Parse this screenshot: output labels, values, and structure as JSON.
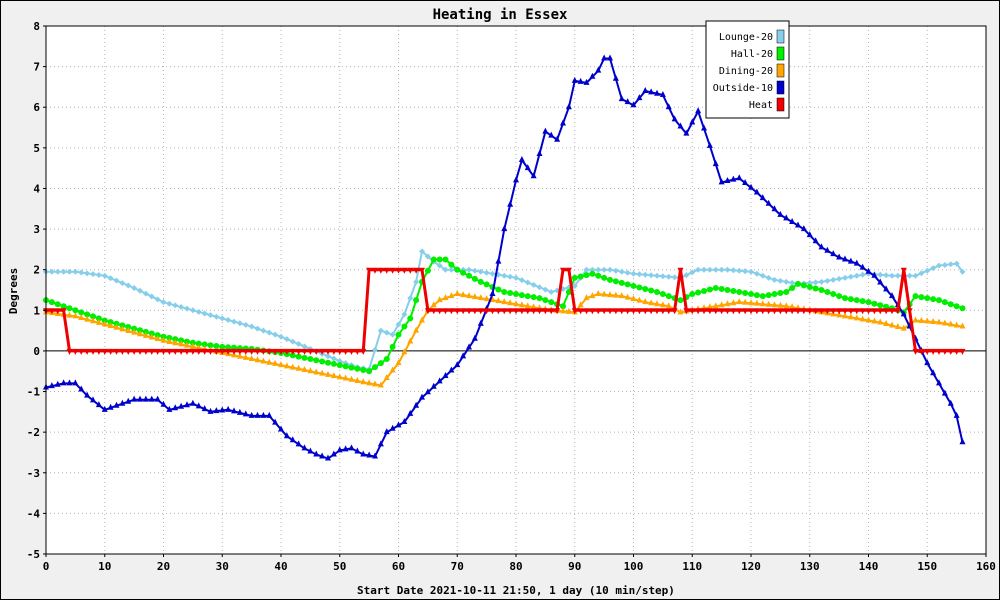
{
  "chart_data": {
    "type": "line",
    "title": "Heating in Essex",
    "xlabel": "Start Date 2021-10-11 21:50, 1 day (10 min/step)",
    "ylabel": "Degrees",
    "xlim": [
      0,
      160
    ],
    "ylim": [
      -5,
      8
    ],
    "xticks": [
      0,
      10,
      20,
      30,
      40,
      50,
      60,
      70,
      80,
      90,
      100,
      110,
      120,
      130,
      140,
      150,
      160
    ],
    "yticks": [
      -5,
      -4,
      -3,
      -2,
      -1,
      0,
      1,
      2,
      3,
      4,
      5,
      6,
      7,
      8
    ],
    "grid": true,
    "legend": "top-right",
    "series": [
      {
        "name": "Lounge-20",
        "color": "#87ceeb",
        "marker": "diamond",
        "points": [
          [
            0,
            1.95
          ],
          [
            5,
            1.95
          ],
          [
            10,
            1.85
          ],
          [
            15,
            1.55
          ],
          [
            20,
            1.2
          ],
          [
            25,
            1.0
          ],
          [
            30,
            0.8
          ],
          [
            35,
            0.6
          ],
          [
            40,
            0.35
          ],
          [
            45,
            0.05
          ],
          [
            50,
            -0.25
          ],
          [
            53,
            -0.4
          ],
          [
            55,
            -0.45
          ],
          [
            57,
            0.5
          ],
          [
            59,
            0.4
          ],
          [
            61,
            0.9
          ],
          [
            63,
            1.7
          ],
          [
            64,
            2.45
          ],
          [
            66,
            2.2
          ],
          [
            68,
            2.0
          ],
          [
            72,
            2.0
          ],
          [
            80,
            1.8
          ],
          [
            86,
            1.45
          ],
          [
            90,
            1.6
          ],
          [
            92,
            2.0
          ],
          [
            96,
            2.0
          ],
          [
            100,
            1.9
          ],
          [
            104,
            1.85
          ],
          [
            108,
            1.8
          ],
          [
            111,
            2.0
          ],
          [
            116,
            2.0
          ],
          [
            120,
            1.95
          ],
          [
            124,
            1.75
          ],
          [
            128,
            1.65
          ],
          [
            132,
            1.7
          ],
          [
            136,
            1.8
          ],
          [
            140,
            1.9
          ],
          [
            144,
            1.85
          ],
          [
            148,
            1.85
          ],
          [
            152,
            2.1
          ],
          [
            155,
            2.15
          ],
          [
            156,
            1.95
          ]
        ]
      },
      {
        "name": "Hall-20",
        "color": "#00ee00",
        "marker": "circle",
        "points": [
          [
            0,
            1.25
          ],
          [
            5,
            1.0
          ],
          [
            10,
            0.75
          ],
          [
            15,
            0.55
          ],
          [
            20,
            0.35
          ],
          [
            25,
            0.2
          ],
          [
            30,
            0.1
          ],
          [
            35,
            0.05
          ],
          [
            40,
            -0.05
          ],
          [
            45,
            -0.2
          ],
          [
            50,
            -0.35
          ],
          [
            55,
            -0.5
          ],
          [
            58,
            -0.2
          ],
          [
            60,
            0.4
          ],
          [
            62,
            0.8
          ],
          [
            64,
            1.7
          ],
          [
            66,
            2.25
          ],
          [
            68,
            2.25
          ],
          [
            70,
            2.0
          ],
          [
            74,
            1.7
          ],
          [
            78,
            1.45
          ],
          [
            84,
            1.3
          ],
          [
            88,
            1.1
          ],
          [
            90,
            1.8
          ],
          [
            93,
            1.9
          ],
          [
            96,
            1.75
          ],
          [
            100,
            1.6
          ],
          [
            104,
            1.45
          ],
          [
            108,
            1.25
          ],
          [
            110,
            1.4
          ],
          [
            114,
            1.55
          ],
          [
            118,
            1.45
          ],
          [
            122,
            1.35
          ],
          [
            126,
            1.45
          ],
          [
            128,
            1.65
          ],
          [
            132,
            1.5
          ],
          [
            136,
            1.3
          ],
          [
            140,
            1.2
          ],
          [
            144,
            1.05
          ],
          [
            146,
            0.95
          ],
          [
            148,
            1.35
          ],
          [
            152,
            1.25
          ],
          [
            156,
            1.05
          ]
        ]
      },
      {
        "name": "Dining-20",
        "color": "#ffa500",
        "marker": "triangle",
        "points": [
          [
            0,
            0.95
          ],
          [
            5,
            0.85
          ],
          [
            10,
            0.65
          ],
          [
            15,
            0.45
          ],
          [
            20,
            0.25
          ],
          [
            25,
            0.1
          ],
          [
            30,
            -0.05
          ],
          [
            35,
            -0.2
          ],
          [
            40,
            -0.35
          ],
          [
            45,
            -0.5
          ],
          [
            50,
            -0.65
          ],
          [
            55,
            -0.8
          ],
          [
            57,
            -0.85
          ],
          [
            60,
            -0.3
          ],
          [
            63,
            0.5
          ],
          [
            65,
            1.0
          ],
          [
            67,
            1.25
          ],
          [
            70,
            1.4
          ],
          [
            74,
            1.3
          ],
          [
            78,
            1.2
          ],
          [
            82,
            1.1
          ],
          [
            86,
            1.0
          ],
          [
            90,
            0.95
          ],
          [
            92,
            1.3
          ],
          [
            94,
            1.4
          ],
          [
            98,
            1.35
          ],
          [
            102,
            1.2
          ],
          [
            106,
            1.1
          ],
          [
            108,
            0.95
          ],
          [
            110,
            1.0
          ],
          [
            114,
            1.1
          ],
          [
            118,
            1.2
          ],
          [
            122,
            1.15
          ],
          [
            126,
            1.1
          ],
          [
            130,
            1.0
          ],
          [
            134,
            0.9
          ],
          [
            138,
            0.8
          ],
          [
            142,
            0.7
          ],
          [
            146,
            0.55
          ],
          [
            148,
            0.75
          ],
          [
            152,
            0.7
          ],
          [
            156,
            0.6
          ]
        ]
      },
      {
        "name": "Outside-10",
        "color": "#0000cc",
        "marker": "triangle",
        "points": [
          [
            0,
            -0.9
          ],
          [
            3,
            -0.8
          ],
          [
            5,
            -0.8
          ],
          [
            7,
            -1.1
          ],
          [
            10,
            -1.45
          ],
          [
            13,
            -1.3
          ],
          [
            15,
            -1.2
          ],
          [
            19,
            -1.2
          ],
          [
            21,
            -1.45
          ],
          [
            25,
            -1.3
          ],
          [
            28,
            -1.5
          ],
          [
            31,
            -1.45
          ],
          [
            35,
            -1.6
          ],
          [
            38,
            -1.6
          ],
          [
            41,
            -2.1
          ],
          [
            44,
            -2.4
          ],
          [
            46,
            -2.55
          ],
          [
            48,
            -2.65
          ],
          [
            50,
            -2.45
          ],
          [
            52,
            -2.4
          ],
          [
            54,
            -2.55
          ],
          [
            56,
            -2.6
          ],
          [
            58,
            -2.0
          ],
          [
            61,
            -1.75
          ],
          [
            64,
            -1.15
          ],
          [
            67,
            -0.75
          ],
          [
            70,
            -0.35
          ],
          [
            73,
            0.3
          ],
          [
            76,
            1.4
          ],
          [
            78,
            3.0
          ],
          [
            80,
            4.2
          ],
          [
            81,
            4.7
          ],
          [
            83,
            4.3
          ],
          [
            85,
            5.4
          ],
          [
            87,
            5.2
          ],
          [
            89,
            6.0
          ],
          [
            90,
            6.65
          ],
          [
            92,
            6.6
          ],
          [
            94,
            6.9
          ],
          [
            95,
            7.2
          ],
          [
            96,
            7.2
          ],
          [
            98,
            6.2
          ],
          [
            100,
            6.05
          ],
          [
            102,
            6.4
          ],
          [
            105,
            6.3
          ],
          [
            107,
            5.7
          ],
          [
            109,
            5.35
          ],
          [
            111,
            5.9
          ],
          [
            113,
            5.05
          ],
          [
            115,
            4.15
          ],
          [
            118,
            4.25
          ],
          [
            121,
            3.9
          ],
          [
            125,
            3.35
          ],
          [
            129,
            3.0
          ],
          [
            132,
            2.55
          ],
          [
            135,
            2.3
          ],
          [
            138,
            2.15
          ],
          [
            141,
            1.85
          ],
          [
            144,
            1.35
          ],
          [
            146,
            0.9
          ],
          [
            148,
            0.3
          ],
          [
            150,
            -0.3
          ],
          [
            152,
            -0.8
          ],
          [
            154,
            -1.3
          ],
          [
            155,
            -1.6
          ],
          [
            156,
            -2.25
          ]
        ]
      },
      {
        "name": "Heat",
        "color": "#ee0000",
        "marker": "triangle-down",
        "points": [
          [
            0,
            1.0
          ],
          [
            3,
            1.0
          ],
          [
            4,
            0.0
          ],
          [
            54,
            0.0
          ],
          [
            55,
            2.0
          ],
          [
            64,
            2.0
          ],
          [
            65,
            1.0
          ],
          [
            87,
            1.0
          ],
          [
            88,
            2.0
          ],
          [
            89,
            2.0
          ],
          [
            90,
            1.0
          ],
          [
            107,
            1.0
          ],
          [
            108,
            2.0
          ],
          [
            109,
            1.0
          ],
          [
            145,
            1.0
          ],
          [
            146,
            2.0
          ],
          [
            147,
            1.0
          ],
          [
            148,
            0.0
          ],
          [
            156,
            0.0
          ]
        ]
      }
    ]
  }
}
